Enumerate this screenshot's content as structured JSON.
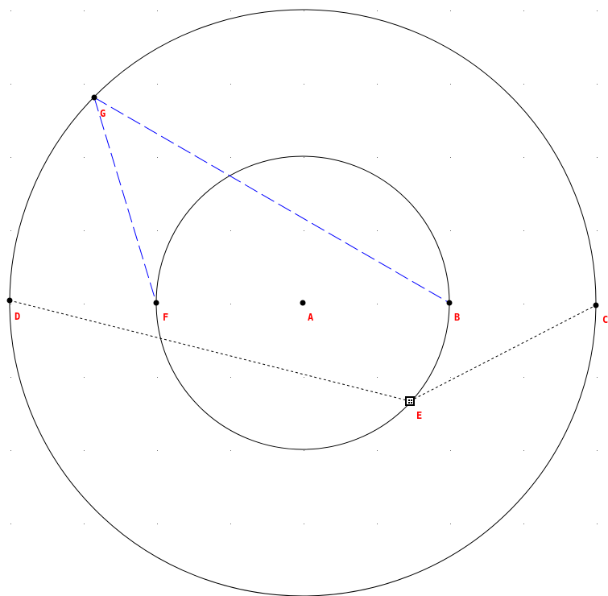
{
  "colors": {
    "background": "#ffffff",
    "circle": "#000000",
    "point": "#000000",
    "label": "#ff0000",
    "dashed_blue": "#0000ff",
    "dotted_black": "#000000",
    "grid_dot": "#6a6a6a"
  },
  "diagram": {
    "points": [
      {
        "id": "A",
        "label": "A",
        "shape": "dot"
      },
      {
        "id": "B",
        "label": "B",
        "shape": "dot"
      },
      {
        "id": "C",
        "label": "C",
        "shape": "dot"
      },
      {
        "id": "D",
        "label": "D",
        "shape": "dot"
      },
      {
        "id": "E",
        "label": "E",
        "shape": "selected-square"
      },
      {
        "id": "F",
        "label": "F",
        "shape": "dot"
      },
      {
        "id": "G",
        "label": "G",
        "shape": "dot"
      }
    ],
    "circles": [
      {
        "id": "outer-circle",
        "center": "A",
        "through": "C"
      },
      {
        "id": "inner-circle",
        "center": "A",
        "through": "B"
      }
    ],
    "segments": [
      {
        "id": "segment-gb",
        "from": "G",
        "to": "B",
        "style": "dashed",
        "color": "blue"
      },
      {
        "id": "segment-gf",
        "from": "G",
        "to": "F",
        "style": "dashed",
        "color": "blue"
      },
      {
        "id": "segment-de",
        "from": "D",
        "to": "E",
        "style": "dotted",
        "color": "black"
      },
      {
        "id": "segment-ec",
        "from": "E",
        "to": "C",
        "style": "dotted",
        "color": "black"
      }
    ],
    "grid": true
  }
}
